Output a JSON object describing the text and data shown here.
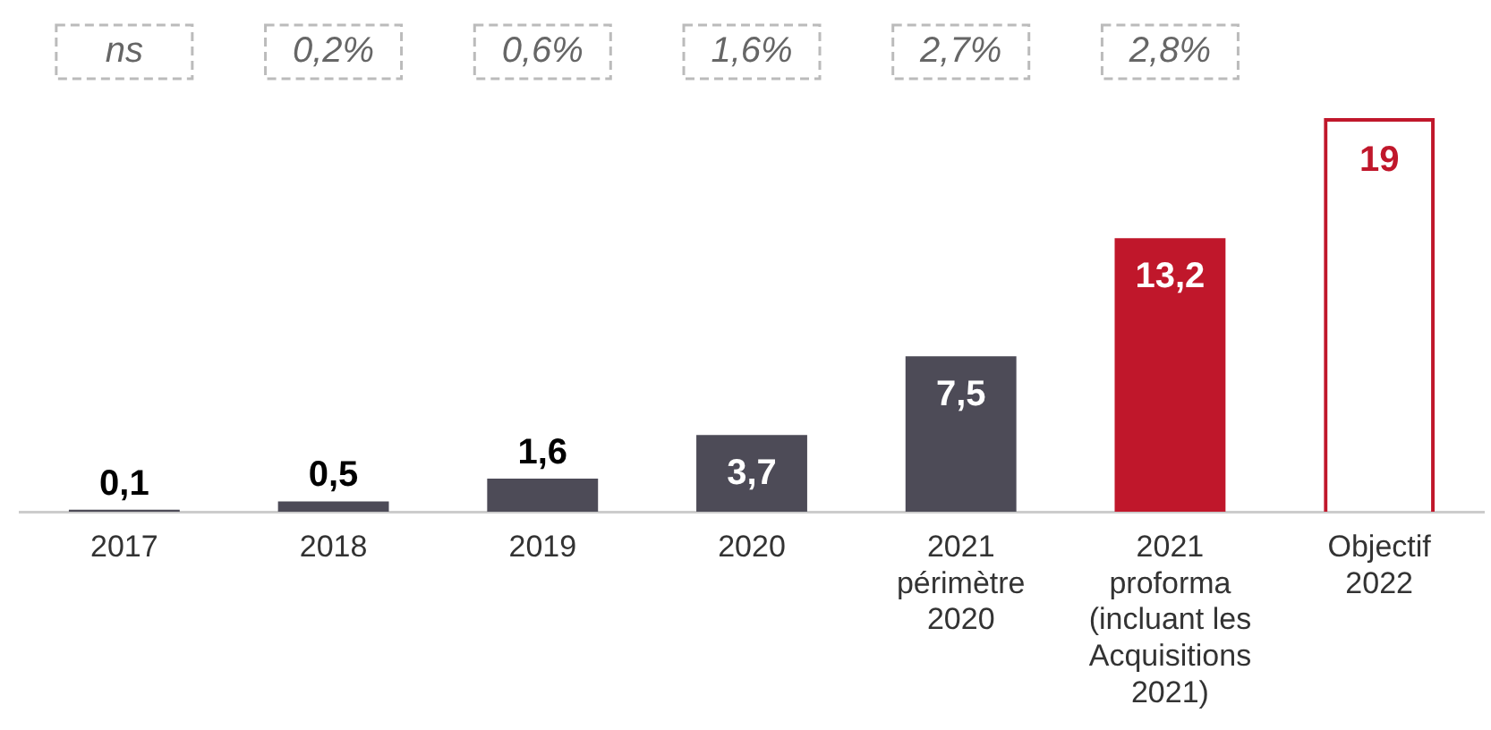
{
  "chart_data": {
    "type": "bar",
    "stacked": true,
    "categories": [
      "2017",
      "2018",
      "2019",
      "2020",
      "2021\npérimètre\n2020",
      "2021\nproforma\n(incluant les\nAcquisitions\n2021)",
      "Objectif\n2022"
    ],
    "series": [
      {
        "colors": [
          "#4d4b57",
          "#4d4b57",
          "#4d4b57",
          "#4d4b57",
          "#4d4b57",
          "#c0172b",
          null
        ],
        "values": [
          0.1,
          0.5,
          1.6,
          3.7,
          7.5,
          13.2,
          null
        ],
        "value_labels": [
          "0,1",
          "0,5",
          "1,6",
          "3,7",
          "7,5",
          "13,2",
          null
        ]
      },
      {
        "color": "#c0172b",
        "line_style": "dashed",
        "values": [
          null,
          null,
          null,
          null,
          null,
          null,
          19
        ],
        "value_labels": [
          null,
          null,
          null,
          null,
          null,
          null,
          "19"
        ]
      }
    ],
    "annotations": [
      "ns",
      "0,2%",
      "0,6%",
      "1,6%",
      "2,7%",
      "2,8%"
    ],
    "grid": false,
    "legend": false
  }
}
